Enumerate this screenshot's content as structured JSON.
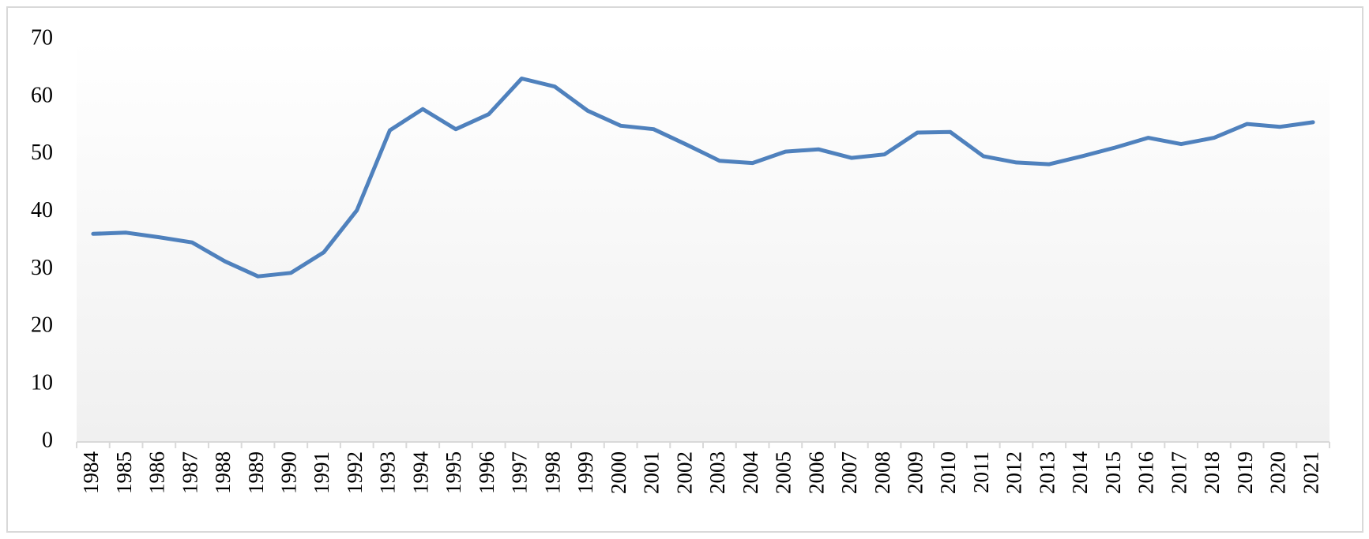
{
  "chart_data": {
    "type": "line",
    "categories": [
      "1984",
      "1985",
      "1986",
      "1987",
      "1988",
      "1989",
      "1990",
      "1991",
      "1992",
      "1993",
      "1994",
      "1995",
      "1996",
      "1997",
      "1998",
      "1999",
      "2000",
      "2001",
      "2002",
      "2003",
      "2004",
      "2005",
      "2006",
      "2007",
      "2008",
      "2009",
      "2010",
      "2011",
      "2012",
      "2013",
      "2014",
      "2015",
      "2016",
      "2017",
      "2018",
      "2019",
      "2020",
      "2021"
    ],
    "values": [
      36.2,
      36.4,
      35.6,
      34.7,
      31.4,
      28.8,
      29.4,
      33.0,
      40.3,
      54.2,
      57.9,
      54.4,
      57.0,
      63.2,
      61.8,
      57.6,
      55.0,
      54.4,
      51.7,
      48.9,
      48.5,
      50.5,
      50.9,
      49.4,
      50.0,
      53.8,
      53.9,
      49.7,
      48.6,
      48.3,
      49.7,
      51.2,
      52.9,
      51.8,
      52.9,
      55.3,
      54.8,
      55.6
    ],
    "color": "#4f81bd",
    "ylim": [
      0,
      70
    ],
    "yticks": [
      0,
      10,
      20,
      30,
      40,
      50,
      60,
      70
    ],
    "grid": false
  }
}
